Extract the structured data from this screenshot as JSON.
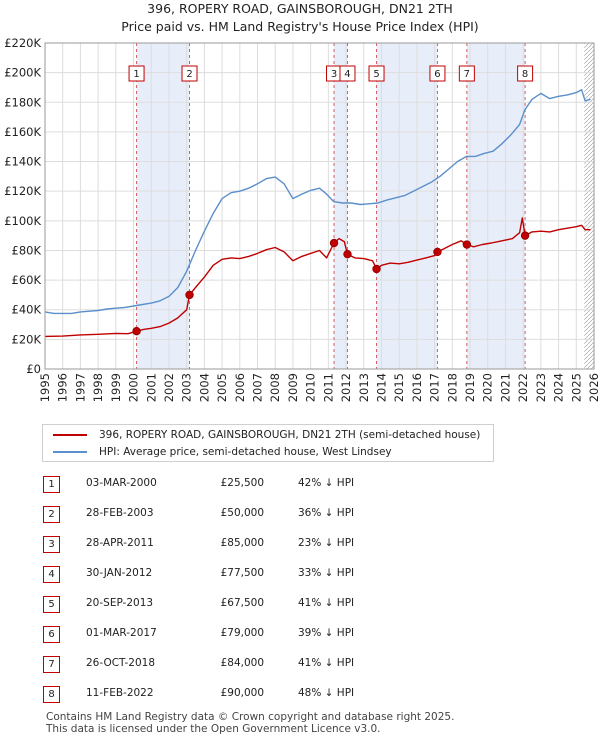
{
  "chart_data": {
    "type": "line",
    "title": "396, ROPERY ROAD, GAINSBOROUGH, DN21 2TH",
    "subtitle": "Price paid vs. HM Land Registry's House Price Index (HPI)",
    "xlim": [
      1995,
      2026
    ],
    "ylim": [
      0,
      220000
    ],
    "x_ticks": [
      1995,
      1996,
      1997,
      1998,
      1999,
      2000,
      2001,
      2002,
      2003,
      2004,
      2005,
      2006,
      2007,
      2008,
      2009,
      2010,
      2011,
      2012,
      2013,
      2014,
      2015,
      2016,
      2017,
      2018,
      2019,
      2020,
      2021,
      2022,
      2023,
      2024,
      2025,
      2026
    ],
    "y_ticks": [
      {
        "value": 0,
        "label": "£0"
      },
      {
        "value": 20000,
        "label": "£20K"
      },
      {
        "value": 40000,
        "label": "£40K"
      },
      {
        "value": 60000,
        "label": "£60K"
      },
      {
        "value": 80000,
        "label": "£80K"
      },
      {
        "value": 100000,
        "label": "£100K"
      },
      {
        "value": 120000,
        "label": "£120K"
      },
      {
        "value": 140000,
        "label": "£140K"
      },
      {
        "value": 160000,
        "label": "£160K"
      },
      {
        "value": 180000,
        "label": "£180K"
      },
      {
        "value": 200000,
        "label": "£200K"
      },
      {
        "value": 220000,
        "label": "£220K"
      }
    ],
    "grid": true,
    "future_hatch_from": 2025.45,
    "shaded_spans": [
      [
        2000.17,
        2003.16
      ],
      [
        2011.32,
        2012.08
      ],
      [
        2013.72,
        2017.16
      ],
      [
        2018.82,
        2022.11
      ]
    ],
    "series": [
      {
        "name": "396, ROPERY ROAD, GAINSBOROUGH, DN21 2TH (semi-detached house)",
        "color": "#c00000",
        "points": [
          [
            1995.0,
            22000
          ],
          [
            1996.0,
            22200
          ],
          [
            1997.0,
            23000
          ],
          [
            1998.0,
            23400
          ],
          [
            1999.0,
            24000
          ],
          [
            1999.7,
            23800
          ],
          [
            2000.17,
            25500
          ],
          [
            2000.6,
            26800
          ],
          [
            2001.0,
            27500
          ],
          [
            2001.5,
            28600
          ],
          [
            2002.0,
            31000
          ],
          [
            2002.5,
            34500
          ],
          [
            2003.0,
            40000
          ],
          [
            2003.16,
            50000
          ],
          [
            2003.5,
            55000
          ],
          [
            2004.0,
            62000
          ],
          [
            2004.5,
            70000
          ],
          [
            2005.0,
            74000
          ],
          [
            2005.5,
            75000
          ],
          [
            2006.0,
            74500
          ],
          [
            2006.5,
            76000
          ],
          [
            2007.0,
            78000
          ],
          [
            2007.5,
            80500
          ],
          [
            2008.0,
            82000
          ],
          [
            2008.5,
            79000
          ],
          [
            2009.0,
            73000
          ],
          [
            2009.5,
            76000
          ],
          [
            2010.0,
            78000
          ],
          [
            2010.5,
            80000
          ],
          [
            2010.9,
            75000
          ],
          [
            2011.32,
            85000
          ],
          [
            2011.6,
            88000
          ],
          [
            2011.9,
            86000
          ],
          [
            2012.08,
            77500
          ],
          [
            2012.5,
            75000
          ],
          [
            2013.0,
            74500
          ],
          [
            2013.5,
            73000
          ],
          [
            2013.72,
            67500
          ],
          [
            2014.0,
            70000
          ],
          [
            2014.5,
            71500
          ],
          [
            2015.0,
            71000
          ],
          [
            2015.5,
            72000
          ],
          [
            2016.0,
            73500
          ],
          [
            2016.5,
            75000
          ],
          [
            2017.0,
            76500
          ],
          [
            2017.16,
            79000
          ],
          [
            2017.5,
            81000
          ],
          [
            2018.0,
            84000
          ],
          [
            2018.5,
            86500
          ],
          [
            2018.82,
            84000
          ],
          [
            2019.2,
            82500
          ],
          [
            2019.7,
            84000
          ],
          [
            2020.2,
            85000
          ],
          [
            2020.6,
            86000
          ],
          [
            2021.0,
            87000
          ],
          [
            2021.4,
            88000
          ],
          [
            2021.8,
            92000
          ],
          [
            2021.95,
            102000
          ],
          [
            2022.11,
            90000
          ],
          [
            2022.5,
            92500
          ],
          [
            2023.0,
            93000
          ],
          [
            2023.5,
            92500
          ],
          [
            2024.0,
            94000
          ],
          [
            2024.5,
            95000
          ],
          [
            2025.0,
            96000
          ],
          [
            2025.3,
            97000
          ],
          [
            2025.5,
            94000
          ],
          [
            2025.8,
            94000
          ]
        ]
      },
      {
        "name": "HPI: Average price, semi-detached house, West Lindsey",
        "color": "#5b8fcb",
        "points": [
          [
            1995.0,
            38500
          ],
          [
            1995.5,
            37500
          ],
          [
            1996.0,
            37500
          ],
          [
            1996.5,
            37500
          ],
          [
            1997.0,
            38500
          ],
          [
            1997.5,
            39000
          ],
          [
            1998.0,
            39500
          ],
          [
            1998.5,
            40500
          ],
          [
            1999.0,
            41000
          ],
          [
            1999.5,
            41500
          ],
          [
            2000.0,
            42500
          ],
          [
            2000.5,
            43500
          ],
          [
            2001.0,
            44500
          ],
          [
            2001.5,
            46000
          ],
          [
            2002.0,
            49000
          ],
          [
            2002.5,
            55000
          ],
          [
            2003.0,
            66000
          ],
          [
            2003.5,
            80000
          ],
          [
            2004.0,
            93000
          ],
          [
            2004.5,
            105000
          ],
          [
            2005.0,
            115000
          ],
          [
            2005.5,
            119000
          ],
          [
            2006.0,
            120000
          ],
          [
            2006.5,
            122000
          ],
          [
            2007.0,
            125000
          ],
          [
            2007.5,
            128500
          ],
          [
            2008.0,
            129500
          ],
          [
            2008.5,
            125000
          ],
          [
            2009.0,
            115000
          ],
          [
            2009.5,
            118000
          ],
          [
            2010.0,
            120500
          ],
          [
            2010.5,
            122000
          ],
          [
            2010.9,
            118000
          ],
          [
            2011.3,
            113000
          ],
          [
            2011.8,
            112000
          ],
          [
            2012.3,
            112000
          ],
          [
            2012.8,
            111000
          ],
          [
            2013.3,
            111500
          ],
          [
            2013.8,
            112000
          ],
          [
            2014.3,
            114000
          ],
          [
            2014.8,
            115500
          ],
          [
            2015.3,
            117000
          ],
          [
            2015.8,
            120000
          ],
          [
            2016.3,
            123000
          ],
          [
            2016.8,
            126000
          ],
          [
            2017.3,
            130000
          ],
          [
            2017.8,
            135000
          ],
          [
            2018.3,
            140000
          ],
          [
            2018.8,
            143500
          ],
          [
            2019.3,
            143500
          ],
          [
            2019.8,
            145500
          ],
          [
            2020.3,
            147000
          ],
          [
            2020.8,
            152000
          ],
          [
            2021.3,
            158000
          ],
          [
            2021.8,
            165000
          ],
          [
            2022.1,
            175000
          ],
          [
            2022.5,
            182000
          ],
          [
            2023.0,
            186000
          ],
          [
            2023.5,
            182500
          ],
          [
            2024.0,
            184000
          ],
          [
            2024.5,
            185000
          ],
          [
            2025.0,
            186500
          ],
          [
            2025.3,
            188500
          ],
          [
            2025.5,
            181000
          ],
          [
            2025.8,
            182000
          ]
        ]
      }
    ],
    "markers": [
      {
        "n": "1",
        "x": 2000.17,
        "y": 25500
      },
      {
        "n": "2",
        "x": 2003.16,
        "y": 50000
      },
      {
        "n": "3",
        "x": 2011.32,
        "y": 85000
      },
      {
        "n": "4",
        "x": 2012.08,
        "y": 77500
      },
      {
        "n": "5",
        "x": 2013.72,
        "y": 67500
      },
      {
        "n": "6",
        "x": 2017.16,
        "y": 79000
      },
      {
        "n": "7",
        "x": 2018.82,
        "y": 84000
      },
      {
        "n": "8",
        "x": 2022.11,
        "y": 90000
      }
    ]
  },
  "legend": {
    "property_label": "396, ROPERY ROAD, GAINSBOROUGH, DN21 2TH (semi-detached house)",
    "hpi_label": "HPI: Average price, semi-detached house, West Lindsey"
  },
  "transactions": [
    {
      "n": "1",
      "date": "03-MAR-2000",
      "price": "£25,500",
      "hpi": "42% ↓ HPI"
    },
    {
      "n": "2",
      "date": "28-FEB-2003",
      "price": "£50,000",
      "hpi": "36% ↓ HPI"
    },
    {
      "n": "3",
      "date": "28-APR-2011",
      "price": "£85,000",
      "hpi": "23% ↓ HPI"
    },
    {
      "n": "4",
      "date": "30-JAN-2012",
      "price": "£77,500",
      "hpi": "33% ↓ HPI"
    },
    {
      "n": "5",
      "date": "20-SEP-2013",
      "price": "£67,500",
      "hpi": "41% ↓ HPI"
    },
    {
      "n": "6",
      "date": "01-MAR-2017",
      "price": "£79,000",
      "hpi": "39% ↓ HPI"
    },
    {
      "n": "7",
      "date": "26-OCT-2018",
      "price": "£84,000",
      "hpi": "41% ↓ HPI"
    },
    {
      "n": "8",
      "date": "11-FEB-2022",
      "price": "£90,000",
      "hpi": "48% ↓ HPI"
    }
  ],
  "footer": {
    "line1": "Contains HM Land Registry data © Crown copyright and database right 2025.",
    "line2": "This data is licensed under the Open Government Licence v3.0."
  }
}
